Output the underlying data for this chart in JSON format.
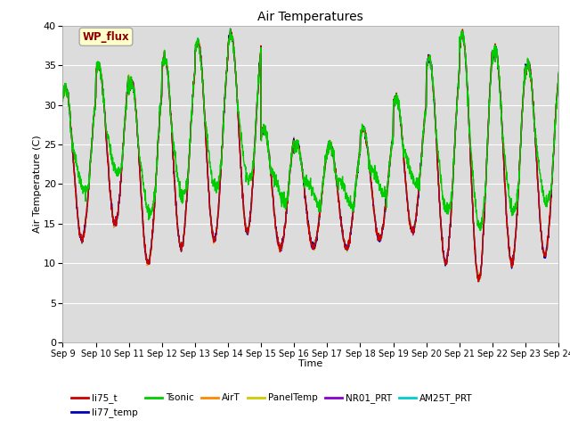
{
  "title": "Air Temperatures",
  "xlabel": "Time",
  "ylabel": "Air Temperature (C)",
  "ylim": [
    0,
    40
  ],
  "yticks": [
    0,
    5,
    10,
    15,
    20,
    25,
    30,
    35,
    40
  ],
  "bg_color": "#dcdcdc",
  "legend_label": "WP_flux",
  "legend_box_color": "#ffffcc",
  "legend_box_text_color": "#8b0000",
  "series_colors": {
    "li75_t": "#cc0000",
    "li77_temp": "#0000bb",
    "Tsonic": "#00cc00",
    "AirT": "#ff8800",
    "PanelTemp": "#cccc00",
    "NR01_PRT": "#8800cc",
    "AM25T_PRT": "#00cccc"
  },
  "series_order": [
    "NR01_PRT",
    "AM25T_PRT",
    "PanelTemp",
    "AirT",
    "li77_temp",
    "li75_t",
    "Tsonic"
  ],
  "legend_order": [
    "li75_t",
    "li77_temp",
    "Tsonic",
    "AirT",
    "PanelTemp",
    "NR01_PRT",
    "AM25T_PRT"
  ],
  "day_peaks": [
    32,
    35,
    33,
    36,
    38,
    39,
    27,
    25,
    25,
    27,
    31,
    36,
    39,
    37,
    35
  ],
  "day_mins": [
    13,
    15,
    10,
    12,
    13,
    14,
    12,
    12,
    12,
    13,
    14,
    10,
    8,
    10,
    11
  ]
}
